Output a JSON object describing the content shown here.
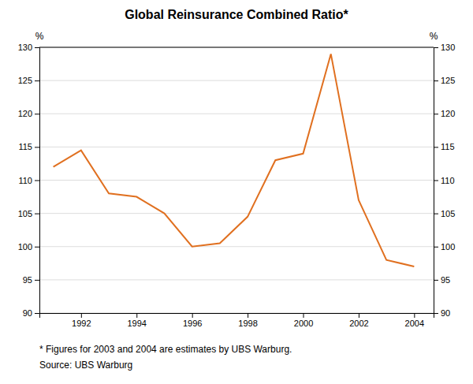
{
  "chart_data": {
    "type": "line",
    "title": "Global Reinsurance Combined Ratio*",
    "x": [
      1991,
      1992,
      1993,
      1994,
      1995,
      1996,
      1997,
      1998,
      1999,
      2000,
      2001,
      2002,
      2003,
      2004
    ],
    "values": [
      112.0,
      114.5,
      108.0,
      107.5,
      105.0,
      100.0,
      100.5,
      104.5,
      113.0,
      114.0,
      129.0,
      107.0,
      98.0,
      97.0
    ],
    "color": "#E07020",
    "xlim": [
      1990.5,
      2004.7
    ],
    "xticks": [
      1992,
      1994,
      1996,
      1998,
      2000,
      2002,
      2004
    ],
    "ylim": [
      90,
      130
    ],
    "yticks": [
      90,
      95,
      100,
      105,
      110,
      115,
      120,
      125,
      130
    ],
    "y2lim": [
      90,
      130
    ],
    "y2ticks": [
      90,
      95,
      100,
      105,
      110,
      115,
      120,
      125,
      130
    ],
    "ylabel": "%",
    "y2label": "%",
    "grid": "y",
    "annotations": [
      "* Figures for 2003 and 2004 are estimates by UBS Warburg.",
      "Source: UBS Warburg"
    ]
  }
}
